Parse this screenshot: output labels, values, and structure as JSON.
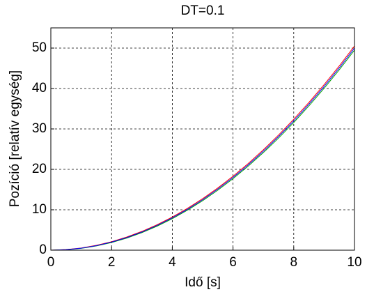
{
  "chart_data": {
    "type": "line",
    "title": "DT=0.1",
    "xlabel": "Idő [s]",
    "ylabel": "Pozíció [relatív egység]",
    "x": [
      0,
      0.5,
      1,
      1.5,
      2,
      2.5,
      3,
      3.5,
      4,
      4.5,
      5,
      5.5,
      6,
      6.5,
      7,
      7.5,
      8,
      8.5,
      9,
      9.5,
      10
    ],
    "series": [
      {
        "color": "#ff0000",
        "values": [
          0,
          0.15,
          0.55,
          1.2,
          2.1,
          3.25,
          4.65,
          6.3,
          8.2,
          10.35,
          12.75,
          15.4,
          18.3,
          21.45,
          24.85,
          28.5,
          32.4,
          36.55,
          40.95,
          45.6,
          50.5
        ]
      },
      {
        "color": "#00a000",
        "values": [
          0,
          0.1,
          0.45,
          1.05,
          1.9,
          3.0,
          4.35,
          5.95,
          7.8,
          9.9,
          12.25,
          14.85,
          17.7,
          20.8,
          24.15,
          27.75,
          31.6,
          35.7,
          40.05,
          44.65,
          49.5
        ]
      },
      {
        "color": "#0000ff",
        "values": [
          0,
          0.125,
          0.5,
          1.125,
          2,
          3.125,
          4.5,
          6.125,
          8,
          10.125,
          12.5,
          15.125,
          18,
          21.125,
          24.5,
          28.125,
          32,
          36.125,
          40.5,
          45.125,
          50
        ]
      }
    ],
    "xlim": [
      0,
      10
    ],
    "xticks": [
      0,
      2,
      4,
      6,
      8,
      10
    ],
    "ylim": [
      0,
      55
    ],
    "yticks": [
      0,
      10,
      20,
      30,
      40,
      50
    ],
    "grid": true
  }
}
